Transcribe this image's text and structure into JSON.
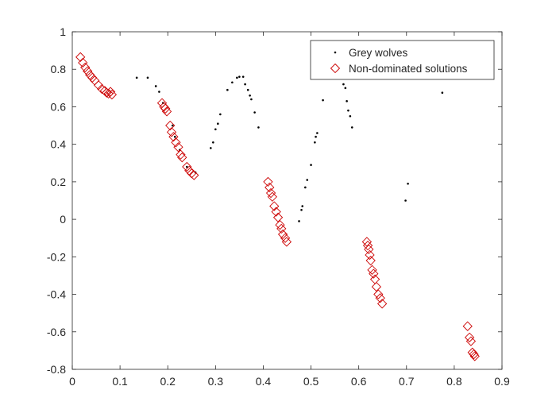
{
  "chart_data": {
    "type": "scatter",
    "title": "",
    "xlabel": "",
    "ylabel": "",
    "xlim": [
      0,
      0.9
    ],
    "ylim": [
      -0.8,
      1
    ],
    "x_ticks": [
      "0",
      "0.1",
      "0.2",
      "0.3",
      "0.4",
      "0.5",
      "0.6",
      "0.7",
      "0.8",
      "0.9"
    ],
    "y_ticks": [
      "1",
      "0.8",
      "0.6",
      "0.4",
      "0.2",
      "0",
      "-0.2",
      "-0.4",
      "-0.6",
      "-0.8"
    ],
    "grid": false,
    "legend_position": "top-right",
    "series": [
      {
        "name": "Grey wolves",
        "marker": "dot",
        "color": "#000000",
        "points": [
          [
            0.135,
            0.755
          ],
          [
            0.158,
            0.755
          ],
          [
            0.175,
            0.71
          ],
          [
            0.182,
            0.68
          ],
          [
            0.19,
            0.62
          ],
          [
            0.21,
            0.5
          ],
          [
            0.215,
            0.44
          ],
          [
            0.225,
            0.37
          ],
          [
            0.24,
            0.28
          ],
          [
            0.258,
            0.25
          ],
          [
            0.29,
            0.38
          ],
          [
            0.295,
            0.41
          ],
          [
            0.3,
            0.48
          ],
          [
            0.305,
            0.51
          ],
          [
            0.31,
            0.56
          ],
          [
            0.325,
            0.69
          ],
          [
            0.335,
            0.73
          ],
          [
            0.345,
            0.755
          ],
          [
            0.35,
            0.76
          ],
          [
            0.358,
            0.76
          ],
          [
            0.362,
            0.72
          ],
          [
            0.368,
            0.69
          ],
          [
            0.372,
            0.66
          ],
          [
            0.375,
            0.64
          ],
          [
            0.382,
            0.57
          ],
          [
            0.39,
            0.49
          ],
          [
            0.475,
            -0.01
          ],
          [
            0.48,
            0.05
          ],
          [
            0.482,
            0.07
          ],
          [
            0.488,
            0.17
          ],
          [
            0.492,
            0.21
          ],
          [
            0.5,
            0.29
          ],
          [
            0.508,
            0.41
          ],
          [
            0.51,
            0.44
          ],
          [
            0.513,
            0.46
          ],
          [
            0.525,
            0.635
          ],
          [
            0.568,
            0.72
          ],
          [
            0.572,
            0.7
          ],
          [
            0.575,
            0.63
          ],
          [
            0.578,
            0.58
          ],
          [
            0.582,
            0.55
          ],
          [
            0.586,
            0.49
          ],
          [
            0.698,
            0.1
          ],
          [
            0.703,
            0.19
          ],
          [
            0.775,
            0.675
          ]
        ]
      },
      {
        "name": "Non-dominated solutions",
        "marker": "diamond",
        "color": "#cc0000",
        "points": [
          [
            0.017,
            0.865
          ],
          [
            0.022,
            0.835
          ],
          [
            0.027,
            0.81
          ],
          [
            0.032,
            0.79
          ],
          [
            0.037,
            0.77
          ],
          [
            0.042,
            0.755
          ],
          [
            0.047,
            0.74
          ],
          [
            0.055,
            0.715
          ],
          [
            0.062,
            0.695
          ],
          [
            0.068,
            0.685
          ],
          [
            0.072,
            0.675
          ],
          [
            0.076,
            0.67
          ],
          [
            0.08,
            0.68
          ],
          [
            0.083,
            0.665
          ],
          [
            0.188,
            0.62
          ],
          [
            0.192,
            0.6
          ],
          [
            0.195,
            0.59
          ],
          [
            0.198,
            0.575
          ],
          [
            0.205,
            0.5
          ],
          [
            0.208,
            0.465
          ],
          [
            0.212,
            0.44
          ],
          [
            0.217,
            0.41
          ],
          [
            0.222,
            0.385
          ],
          [
            0.227,
            0.345
          ],
          [
            0.23,
            0.33
          ],
          [
            0.24,
            0.28
          ],
          [
            0.245,
            0.26
          ],
          [
            0.25,
            0.245
          ],
          [
            0.255,
            0.235
          ],
          [
            0.41,
            0.2
          ],
          [
            0.413,
            0.17
          ],
          [
            0.416,
            0.14
          ],
          [
            0.419,
            0.12
          ],
          [
            0.423,
            0.07
          ],
          [
            0.427,
            0.04
          ],
          [
            0.431,
            0.01
          ],
          [
            0.435,
            -0.03
          ],
          [
            0.438,
            -0.05
          ],
          [
            0.441,
            -0.08
          ],
          [
            0.446,
            -0.1
          ],
          [
            0.449,
            -0.12
          ],
          [
            0.617,
            -0.12
          ],
          [
            0.619,
            -0.14
          ],
          [
            0.621,
            -0.16
          ],
          [
            0.623,
            -0.19
          ],
          [
            0.625,
            -0.22
          ],
          [
            0.628,
            -0.27
          ],
          [
            0.631,
            -0.29
          ],
          [
            0.634,
            -0.32
          ],
          [
            0.637,
            -0.36
          ],
          [
            0.641,
            -0.4
          ],
          [
            0.645,
            -0.42
          ],
          [
            0.649,
            -0.45
          ],
          [
            0.828,
            -0.57
          ],
          [
            0.832,
            -0.63
          ],
          [
            0.835,
            -0.65
          ],
          [
            0.838,
            -0.71
          ],
          [
            0.841,
            -0.72
          ],
          [
            0.843,
            -0.73
          ]
        ]
      }
    ]
  }
}
